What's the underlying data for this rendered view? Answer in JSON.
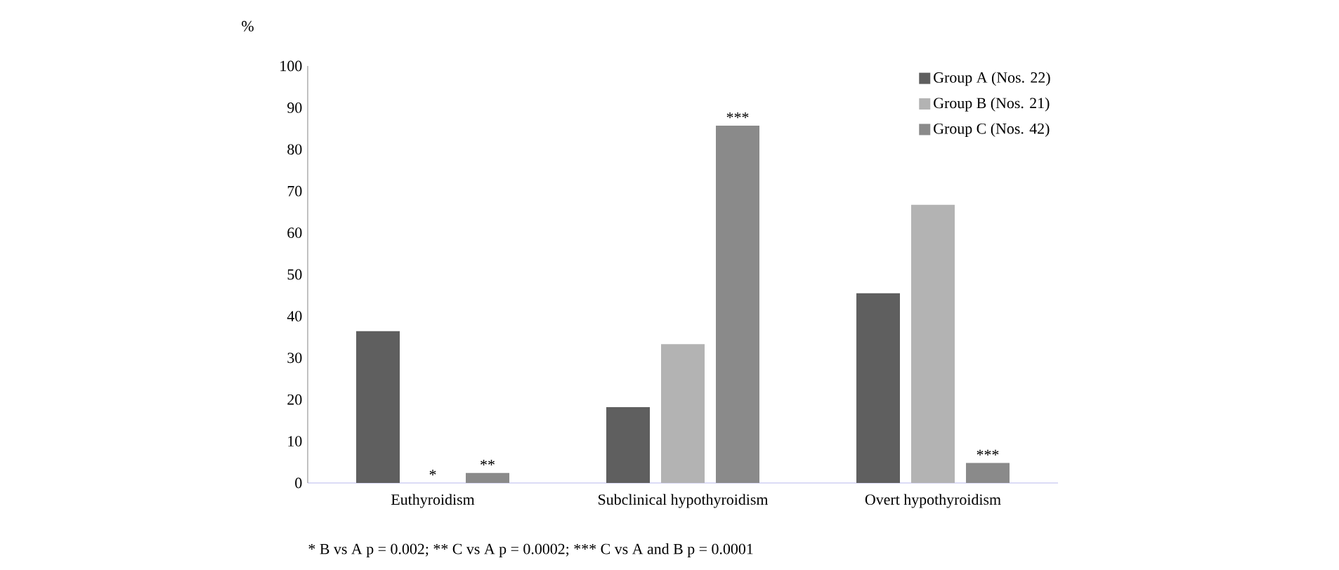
{
  "chart_data": {
    "type": "bar",
    "ylabel": "%",
    "categories": [
      "Euthyroidism",
      "Subclinical hypothyroidism",
      "Overt hypothyroidism"
    ],
    "series": [
      {
        "name": "Group A (Nos. 22)",
        "color": "#5f5f5f",
        "values": [
          36.4,
          18.2,
          45.5
        ]
      },
      {
        "name": "Group B (Nos. 21)",
        "color": "#b3b3b3",
        "values": [
          0,
          33.3,
          66.7
        ],
        "value_labels": [
          "*",
          null,
          null
        ]
      },
      {
        "name": "Group C (Nos. 42)",
        "color": "#8a8a8a",
        "values": [
          2.4,
          85.7,
          4.8
        ],
        "value_labels": [
          "**",
          "***",
          "***"
        ]
      }
    ],
    "ylim": [
      0,
      100
    ],
    "yticks": [
      0,
      10,
      20,
      30,
      40,
      50,
      60,
      70,
      80,
      90,
      100
    ],
    "legend": "top right",
    "annotations": [
      "* B vs A p = 0.002; ** C vs A p = 0.0002; *** C vs A and B p = 0.0001"
    ]
  }
}
